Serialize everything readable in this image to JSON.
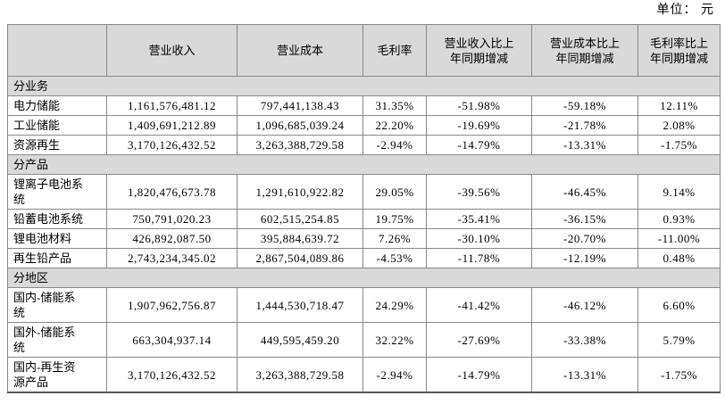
{
  "unit_label": "单位： 元",
  "table": {
    "columns": [
      "",
      "营业收入",
      "营业成本",
      "毛利率",
      "营业收入比上\n年同期增减",
      "营业成本比上\n年同期增减",
      "毛利率比上\n年同期增减"
    ],
    "sections": [
      {
        "label": "分业务",
        "rows": [
          {
            "name": "电力储能",
            "revenue": "1,161,576,481.12",
            "cost": "797,441,138.43",
            "margin": "31.35%",
            "revenue_yoy": "-51.98%",
            "cost_yoy": "-59.18%",
            "margin_yoy": "12.11%"
          },
          {
            "name": "工业储能",
            "revenue": "1,409,691,212.89",
            "cost": "1,096,685,039.24",
            "margin": "22.20%",
            "revenue_yoy": "-19.69%",
            "cost_yoy": "-21.78%",
            "margin_yoy": "2.08%"
          },
          {
            "name": "资源再生",
            "revenue": "3,170,126,432.52",
            "cost": "3,263,388,729.58",
            "margin": "-2.94%",
            "revenue_yoy": "-14.79%",
            "cost_yoy": "-13.31%",
            "margin_yoy": "-1.75%"
          }
        ]
      },
      {
        "label": "分产品",
        "rows": [
          {
            "name": "锂离子电池系\n统",
            "revenue": "1,820,476,673.78",
            "cost": "1,291,610,922.82",
            "margin": "29.05%",
            "revenue_yoy": "-39.56%",
            "cost_yoy": "-46.45%",
            "margin_yoy": "9.14%"
          },
          {
            "name": "铅蓄电池系统",
            "revenue": "750,791,020.23",
            "cost": "602,515,254.85",
            "margin": "19.75%",
            "revenue_yoy": "-35.41%",
            "cost_yoy": "-36.15%",
            "margin_yoy": "0.93%"
          },
          {
            "name": "锂电池材料",
            "revenue": "426,892,087.50",
            "cost": "395,884,639.72",
            "margin": "7.26%",
            "revenue_yoy": "-30.10%",
            "cost_yoy": "-20.70%",
            "margin_yoy": "-11.00%"
          },
          {
            "name": "再生铅产品",
            "revenue": "2,743,234,345.02",
            "cost": "2,867,504,089.86",
            "margin": "-4.53%",
            "revenue_yoy": "-11.78%",
            "cost_yoy": "-12.19%",
            "margin_yoy": "0.48%"
          }
        ]
      },
      {
        "label": "分地区",
        "rows": [
          {
            "name": "国内-储能系\n统",
            "revenue": "1,907,962,756.87",
            "cost": "1,444,530,718.47",
            "margin": "24.29%",
            "revenue_yoy": "-41.42%",
            "cost_yoy": "-46.12%",
            "margin_yoy": "6.60%"
          },
          {
            "name": "国外-储能系\n统",
            "revenue": "663,304,937.14",
            "cost": "449,595,459.20",
            "margin": "32.22%",
            "revenue_yoy": "-27.69%",
            "cost_yoy": "-33.38%",
            "margin_yoy": "5.79%"
          },
          {
            "name": "国内-再生资\n源产品",
            "revenue": "3,170,126,432.52",
            "cost": "3,263,388,729.58",
            "margin": "-2.94%",
            "revenue_yoy": "-14.79%",
            "cost_yoy": "-13.31%",
            "margin_yoy": "-1.75%"
          }
        ]
      }
    ]
  },
  "colors": {
    "header_bg": "#d9d9d9",
    "section_bg": "#d9d9d9",
    "border": "#898989",
    "text": "#000000"
  }
}
